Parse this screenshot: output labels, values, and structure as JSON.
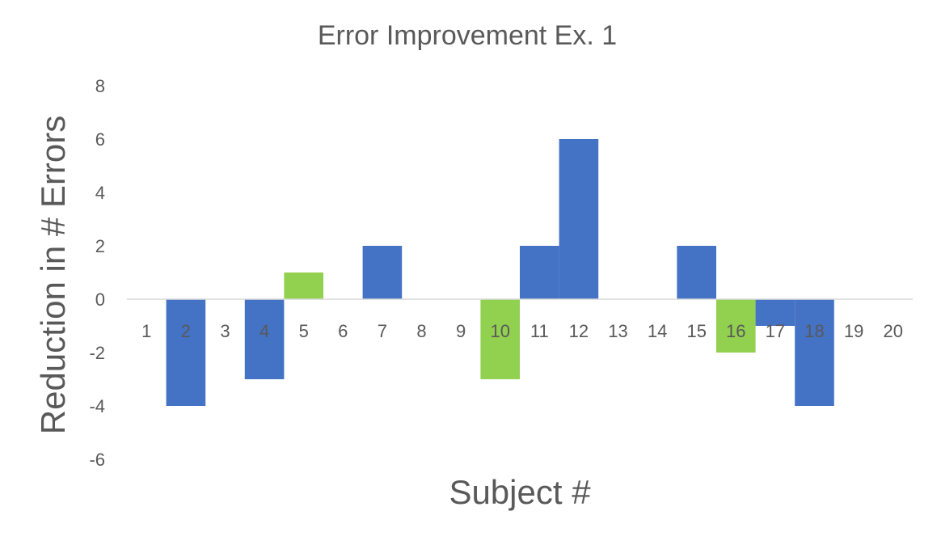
{
  "chart_data": {
    "type": "bar",
    "title": "Error Improvement Ex. 1",
    "xlabel": "Subject #",
    "ylabel": "Reduction in # Errors",
    "categories": [
      "1",
      "2",
      "3",
      "4",
      "5",
      "6",
      "7",
      "8",
      "9",
      "10",
      "11",
      "12",
      "13",
      "14",
      "15",
      "16",
      "17",
      "18",
      "19",
      "20"
    ],
    "values": [
      0,
      -4,
      0,
      -3,
      1,
      0,
      2,
      0,
      0,
      -3,
      2,
      6,
      0,
      0,
      2,
      -2,
      -1,
      -4,
      0,
      0
    ],
    "highlighted_categories": [
      "5",
      "10",
      "16"
    ],
    "ylim": [
      -6,
      8
    ],
    "yticks": [
      -6,
      -4,
      -2,
      0,
      2,
      4,
      6,
      8
    ],
    "grid": false,
    "legend": "none",
    "colors": {
      "bar": "#4472C4",
      "highlight": "#92D050",
      "axis": "#D9D9D9",
      "text": "#595959"
    }
  }
}
